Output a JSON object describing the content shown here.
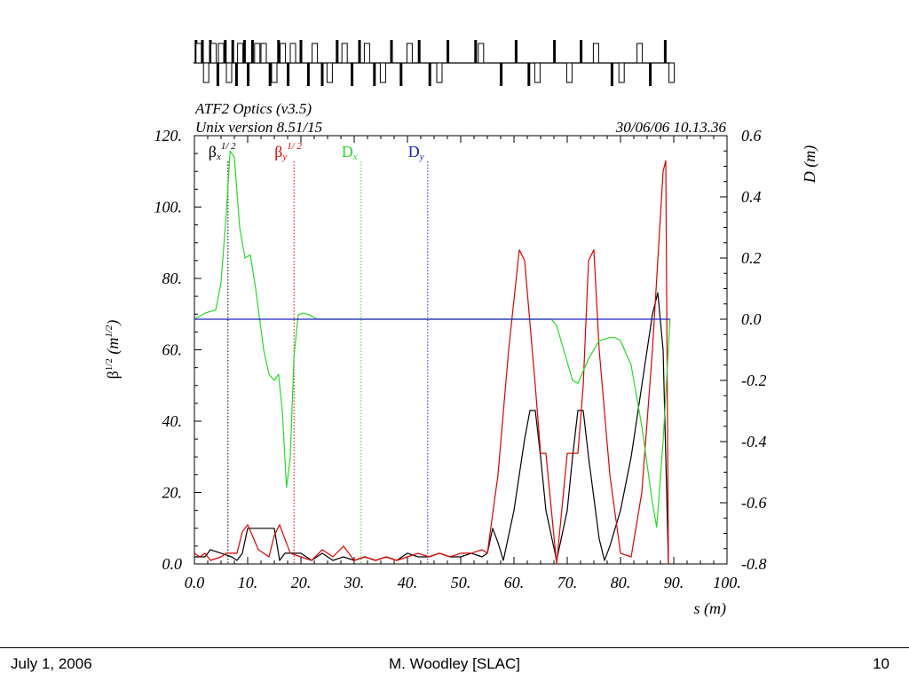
{
  "footer": {
    "date": "July 1, 2006",
    "author": "M. Woodley [SLAC]",
    "page": "10"
  },
  "chart_data": {
    "type": "line",
    "title": "ATF2 Optics (v3.5)",
    "subtitle": "Unix version 8.51/15",
    "timestamp": "30/06/06  10.13.36",
    "xlabel": "s (m)",
    "ylabel_left": "β^{1/2}  (m^{1/2})",
    "ylabel_right": "D  (m)",
    "xlim": [
      0,
      100
    ],
    "ylim_left": [
      0,
      120
    ],
    "ylim_right": [
      -0.8,
      0.6
    ],
    "x_ticks": [
      "0.0",
      "10.",
      "20.",
      "30.",
      "40.",
      "50.",
      "60.",
      "70.",
      "80.",
      "90.",
      "100."
    ],
    "y_left_ticks": [
      "0.0",
      "20.",
      "40.",
      "60.",
      "80.",
      "100.",
      "120."
    ],
    "y_right_ticks": [
      "-0.8",
      "-0.6",
      "-0.4",
      "-0.2",
      "0.0",
      "0.2",
      "0.4",
      "0.6"
    ],
    "legend": [
      {
        "key": "betax",
        "base": "β",
        "sub": "x",
        "sup": "1/ 2",
        "color": "#000000",
        "x": 6.3
      },
      {
        "key": "betay",
        "base": "β",
        "sub": "y",
        "sup": "1/ 2",
        "color": "#e00000",
        "x": 18.7
      },
      {
        "key": "dx",
        "base": "D",
        "sub": "x",
        "sup": "",
        "color": "#22dd22",
        "x": 31.3
      },
      {
        "key": "dy",
        "base": "D",
        "sub": "y",
        "sup": "",
        "color": "#2222cc",
        "x": 43.8
      }
    ],
    "series": [
      {
        "name": "βx^{1/2}",
        "axis": "left",
        "color": "#000000",
        "x": [
          0,
          2,
          3,
          5,
          7,
          8,
          9,
          10,
          12,
          14,
          15,
          16,
          17,
          18,
          20,
          22,
          24,
          26,
          28,
          30,
          32,
          34,
          36,
          38,
          40,
          42,
          44,
          46,
          48,
          50,
          52,
          54,
          55,
          56,
          57,
          58,
          60,
          62,
          63,
          64,
          65,
          66,
          68,
          70,
          71,
          72,
          73,
          74,
          76,
          77,
          78,
          80,
          82,
          84,
          86,
          87,
          88,
          89
        ],
        "y": [
          2,
          2,
          4,
          3,
          2,
          1,
          3,
          10,
          10,
          10,
          10,
          1,
          3,
          3,
          3,
          1,
          3,
          1,
          2,
          1,
          2,
          1,
          2,
          1,
          3,
          2,
          2,
          3,
          2,
          2,
          3,
          2,
          3,
          10,
          6,
          1,
          15,
          35,
          43,
          43,
          30,
          15,
          1,
          15,
          30,
          43,
          43,
          30,
          7,
          1,
          5,
          15,
          30,
          50,
          70,
          76,
          60,
          0
        ]
      },
      {
        "name": "βy^{1/2}",
        "axis": "left",
        "color": "#e00000",
        "x": [
          0,
          1,
          2,
          3,
          5,
          6,
          8,
          9,
          10,
          12,
          14,
          15,
          16,
          18,
          20,
          22,
          24,
          26,
          28,
          30,
          32,
          34,
          36,
          38,
          40,
          42,
          44,
          46,
          48,
          50,
          52,
          54,
          55,
          57,
          59,
          61,
          62,
          64,
          65,
          66,
          68,
          70,
          72,
          73,
          74,
          75,
          76,
          78,
          80,
          82,
          84,
          86,
          87,
          88,
          88.5,
          89
        ],
        "y": [
          3,
          2,
          3,
          1,
          2,
          3,
          3,
          9,
          11,
          4,
          2,
          8,
          11,
          3,
          2,
          1,
          4,
          2,
          5,
          1,
          2,
          1,
          2,
          1,
          2,
          3,
          2,
          3,
          2,
          3,
          3,
          4,
          3,
          25,
          60,
          88,
          85,
          50,
          31,
          31,
          0,
          31,
          31,
          50,
          85,
          88,
          60,
          25,
          3,
          2,
          20,
          60,
          85,
          110,
          113,
          0
        ]
      },
      {
        "name": "Dx",
        "axis": "right",
        "color": "#22dd22",
        "x": [
          0,
          2,
          4,
          5,
          6,
          6.7,
          7.5,
          8.5,
          9.5,
          10.5,
          11.5,
          13,
          14,
          15,
          15.8,
          16.5,
          17.3,
          18,
          18.7,
          19.5,
          20.5,
          21.5,
          23,
          25,
          30,
          40,
          50,
          60,
          67,
          68,
          70,
          71,
          72,
          74,
          76,
          77,
          78,
          79,
          80,
          82,
          84,
          86,
          86.8,
          88,
          89.3
        ],
        "y": [
          0,
          0.02,
          0.03,
          0.12,
          0.35,
          0.55,
          0.53,
          0.3,
          0.2,
          0.21,
          0.1,
          -0.1,
          -0.18,
          -0.2,
          -0.18,
          -0.3,
          -0.55,
          -0.45,
          -0.12,
          0.015,
          0.02,
          0.015,
          0.0,
          0.0,
          0.0,
          0.0,
          0.0,
          0.0,
          0.0,
          -0.02,
          -0.14,
          -0.2,
          -0.21,
          -0.13,
          -0.07,
          -0.065,
          -0.06,
          -0.06,
          -0.07,
          -0.15,
          -0.35,
          -0.6,
          -0.68,
          -0.4,
          0.0
        ]
      },
      {
        "name": "Dy",
        "axis": "right",
        "color": "#2222cc",
        "x": [
          0,
          89.3
        ],
        "y": [
          0,
          0
        ]
      }
    ],
    "lattice_elements": [
      {
        "s": 0.3,
        "kind": "bar",
        "h": 1
      },
      {
        "s": 0.8,
        "kind": "box",
        "h": 1
      },
      {
        "s": 1.5,
        "kind": "bar",
        "h": 1
      },
      {
        "s": 2.2,
        "kind": "box",
        "h": -1
      },
      {
        "s": 3.0,
        "kind": "bar",
        "h": 1
      },
      {
        "s": 3.6,
        "kind": "box",
        "h": 1
      },
      {
        "s": 4.4,
        "kind": "bar",
        "h": -1
      },
      {
        "s": 5.0,
        "kind": "box",
        "h": 1
      },
      {
        "s": 5.8,
        "kind": "bar",
        "h": 1
      },
      {
        "s": 6.5,
        "kind": "box",
        "h": -1
      },
      {
        "s": 7.2,
        "kind": "bar",
        "h": 1
      },
      {
        "s": 7.9,
        "kind": "bar",
        "h": -1
      },
      {
        "s": 8.6,
        "kind": "box",
        "h": 1
      },
      {
        "s": 9.4,
        "kind": "bar",
        "h": 1
      },
      {
        "s": 10.1,
        "kind": "bar",
        "h": -1
      },
      {
        "s": 10.9,
        "kind": "bar",
        "h": 1
      },
      {
        "s": 11.8,
        "kind": "box",
        "h": 1
      },
      {
        "s": 13.0,
        "kind": "box",
        "h": 1
      },
      {
        "s": 14.2,
        "kind": "bar",
        "h": -1
      },
      {
        "s": 15.0,
        "kind": "box",
        "h": -1
      },
      {
        "s": 15.8,
        "kind": "bar",
        "h": 1
      },
      {
        "s": 16.6,
        "kind": "box",
        "h": 1
      },
      {
        "s": 17.6,
        "kind": "bar",
        "h": -1
      },
      {
        "s": 18.5,
        "kind": "box",
        "h": 1
      },
      {
        "s": 20.0,
        "kind": "bar",
        "h": 1
      },
      {
        "s": 21.4,
        "kind": "bar",
        "h": -1
      },
      {
        "s": 22.6,
        "kind": "box",
        "h": 1
      },
      {
        "s": 24.0,
        "kind": "bar",
        "h": -1
      },
      {
        "s": 25.4,
        "kind": "box",
        "h": -1
      },
      {
        "s": 26.8,
        "kind": "bar",
        "h": 1
      },
      {
        "s": 28.2,
        "kind": "box",
        "h": 1
      },
      {
        "s": 29.6,
        "kind": "bar",
        "h": -1
      },
      {
        "s": 31.0,
        "kind": "bar",
        "h": 1
      },
      {
        "s": 32.4,
        "kind": "box",
        "h": 1
      },
      {
        "s": 33.8,
        "kind": "bar",
        "h": -1
      },
      {
        "s": 35.4,
        "kind": "box",
        "h": -1
      },
      {
        "s": 37.0,
        "kind": "bar",
        "h": 1
      },
      {
        "s": 38.8,
        "kind": "bar",
        "h": -1
      },
      {
        "s": 40.4,
        "kind": "box",
        "h": 1
      },
      {
        "s": 42.2,
        "kind": "bar",
        "h": 1
      },
      {
        "s": 44.2,
        "kind": "bar",
        "h": -1
      },
      {
        "s": 46.0,
        "kind": "box",
        "h": -1
      },
      {
        "s": 47.6,
        "kind": "bar",
        "h": 1
      },
      {
        "s": 52.8,
        "kind": "bar",
        "h": 1
      },
      {
        "s": 53.8,
        "kind": "box",
        "h": 1
      },
      {
        "s": 57.6,
        "kind": "bar",
        "h": -1
      },
      {
        "s": 60.4,
        "kind": "bar",
        "h": 1
      },
      {
        "s": 62.8,
        "kind": "bar",
        "h": -1
      },
      {
        "s": 64.4,
        "kind": "box",
        "h": -1
      },
      {
        "s": 67.6,
        "kind": "bar",
        "h": 1
      },
      {
        "s": 70.4,
        "kind": "box",
        "h": -1
      },
      {
        "s": 72.6,
        "kind": "bar",
        "h": 1
      },
      {
        "s": 75.4,
        "kind": "box",
        "h": 1
      },
      {
        "s": 78.4,
        "kind": "bar",
        "h": -1
      },
      {
        "s": 80.2,
        "kind": "box",
        "h": -1
      },
      {
        "s": 83.6,
        "kind": "box",
        "h": 1
      },
      {
        "s": 85.6,
        "kind": "bar",
        "h": -1
      },
      {
        "s": 88.4,
        "kind": "bar",
        "h": 1
      },
      {
        "s": 89.6,
        "kind": "box",
        "h": -1
      }
    ]
  }
}
